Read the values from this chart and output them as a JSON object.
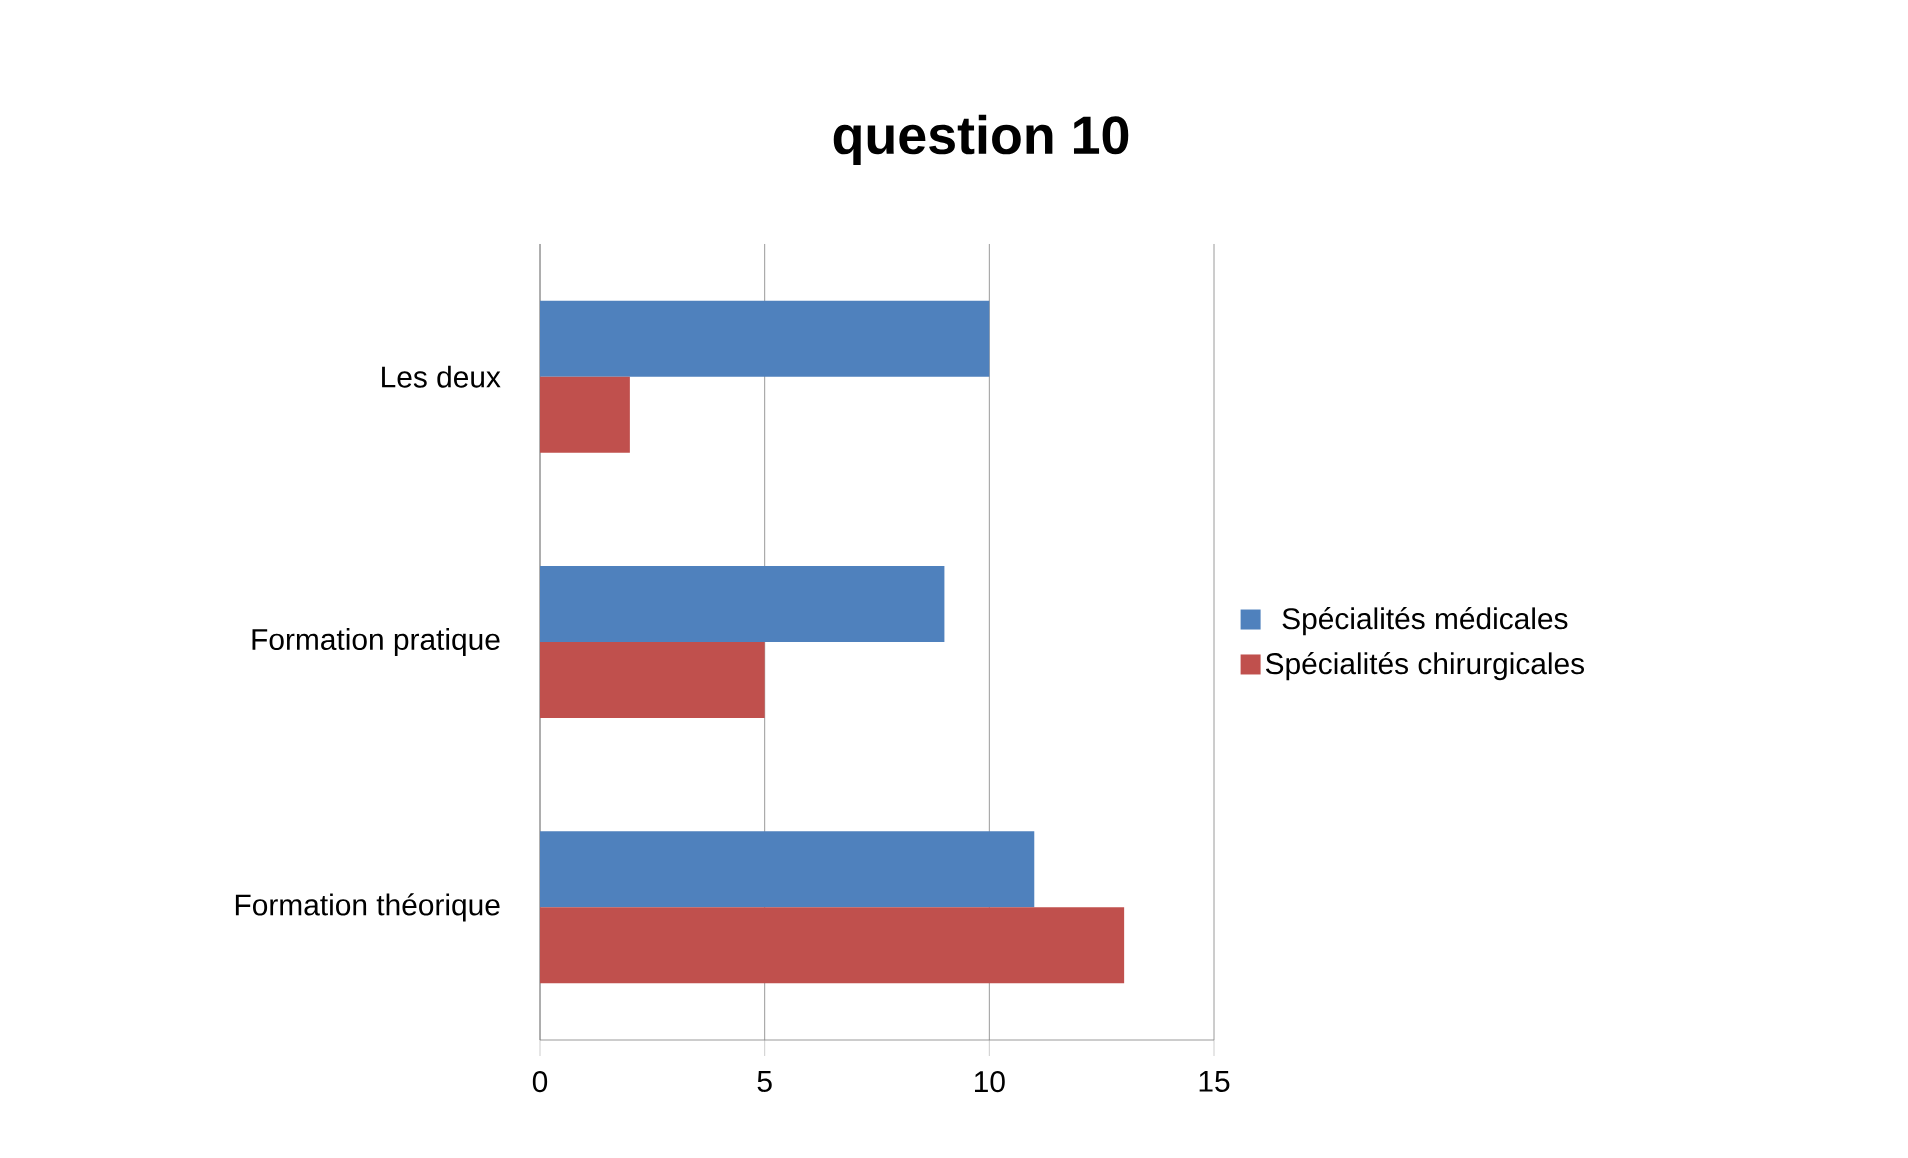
{
  "chart_data": {
    "type": "bar",
    "orientation": "horizontal",
    "title": "question 10",
    "categories": [
      "Les deux",
      "Formation pratique",
      "Formation théorique"
    ],
    "series": [
      {
        "name": "Spécialités médicales",
        "color": "#4f81bd",
        "values": [
          10,
          9,
          11
        ]
      },
      {
        "name": "Spécialités chirurgicales",
        "color": "#c0504d",
        "values": [
          2,
          5,
          13
        ]
      }
    ],
    "xlim": [
      0,
      15
    ],
    "xticks": [
      0,
      5,
      10,
      15
    ],
    "grid": "x",
    "legend": "right"
  }
}
